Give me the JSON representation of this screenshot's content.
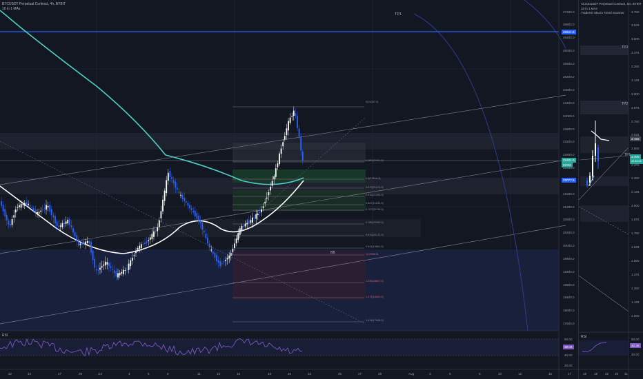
{
  "left_chart": {
    "symbol": "BTCUSDT Perpetual Contract, 4h, BYBIT",
    "indicator": "10 in 1 MAs",
    "marker_tp": "TP1",
    "marker_bb": "BB",
    "price_axis": [
      "27200.0",
      "26800.0",
      "26400.0",
      "26000.0",
      "25600.0",
      "25200.0",
      "24800.0",
      "24400.0",
      "24000.0",
      "23600.0",
      "23200.0",
      "22800.0",
      "22400.0",
      "22000.0",
      "21600.0",
      "21200.0",
      "20800.0",
      "20400.0",
      "20000.0",
      "19600.0",
      "19200.0",
      "18800.0",
      "18400.0",
      "18000.0",
      "17600.0"
    ],
    "price_tags": {
      "highlight": "25541.5",
      "current": "22401.0",
      "current_sub": "03:02",
      "secondary": "22077.5"
    },
    "fib_levels": [
      "0(24287.0)",
      "0.382(22401.5)",
      "0.5(21816.5)",
      "0.573(21474.5)",
      "0.618(21265.0)",
      "0.667(21031.5)",
      "0.707(20796.5)",
      "0.786(20455.0)",
      "0.876(20172.0)",
      "0.941(19862.5)",
      "1(19556.5)",
      "1.236(18807.0)",
      "1.272(18400.5)",
      "1.414(17648.0)"
    ],
    "time_axis": [
      "22",
      "24",
      "27",
      "29",
      "Jul",
      "4",
      "6",
      "8",
      "11",
      "13",
      "15",
      "18",
      "20",
      "22",
      "25",
      "27",
      "29",
      "Aug",
      "3",
      "5",
      "8",
      "10",
      "12",
      "15",
      "17"
    ],
    "rsi": {
      "label": "RSI",
      "axis": [
        "60.00",
        "40.00",
        "20.00"
      ],
      "value": "38.04"
    }
  },
  "right_chart": {
    "symbol": "ALICEUSDT Perpetual Contract, 1D, BYBIT",
    "indicator1": "10 in 1 MAs",
    "indicator2": "TradeXO Macro Trend Scanner",
    "marker_tp3": "TP3",
    "marker_tp2": "TP2",
    "marker_tp1": "TP1",
    "price_axis": [
      "3.750",
      "3.625",
      "3.500",
      "3.375",
      "3.250",
      "3.125",
      "3.000",
      "2.875",
      "2.750",
      "2.625",
      "2.500",
      "2.375",
      "2.250",
      "2.125",
      "2.000",
      "1.875",
      "1.750",
      "1.625",
      "1.500",
      "1.375",
      "1.250",
      "1.125",
      "1.000"
    ],
    "price_tags": {
      "a": "2.482",
      "b": "2.400",
      "b_sub": "02:55:08"
    },
    "time_axis": [
      "15",
      "18",
      "22",
      "25",
      "31"
    ],
    "rsi": {
      "label": "RSI",
      "axis": [
        "60.00",
        "40.00"
      ],
      "value": "42.49"
    }
  },
  "colors": {
    "background": "#131722",
    "candle_up": "#ffffff",
    "candle_down": "#2962ff",
    "ma_slow": "#4dd0c6",
    "ma_fast": "#ffffff",
    "highlight_line": "#2962ff",
    "current_tag": "#26a69a"
  }
}
